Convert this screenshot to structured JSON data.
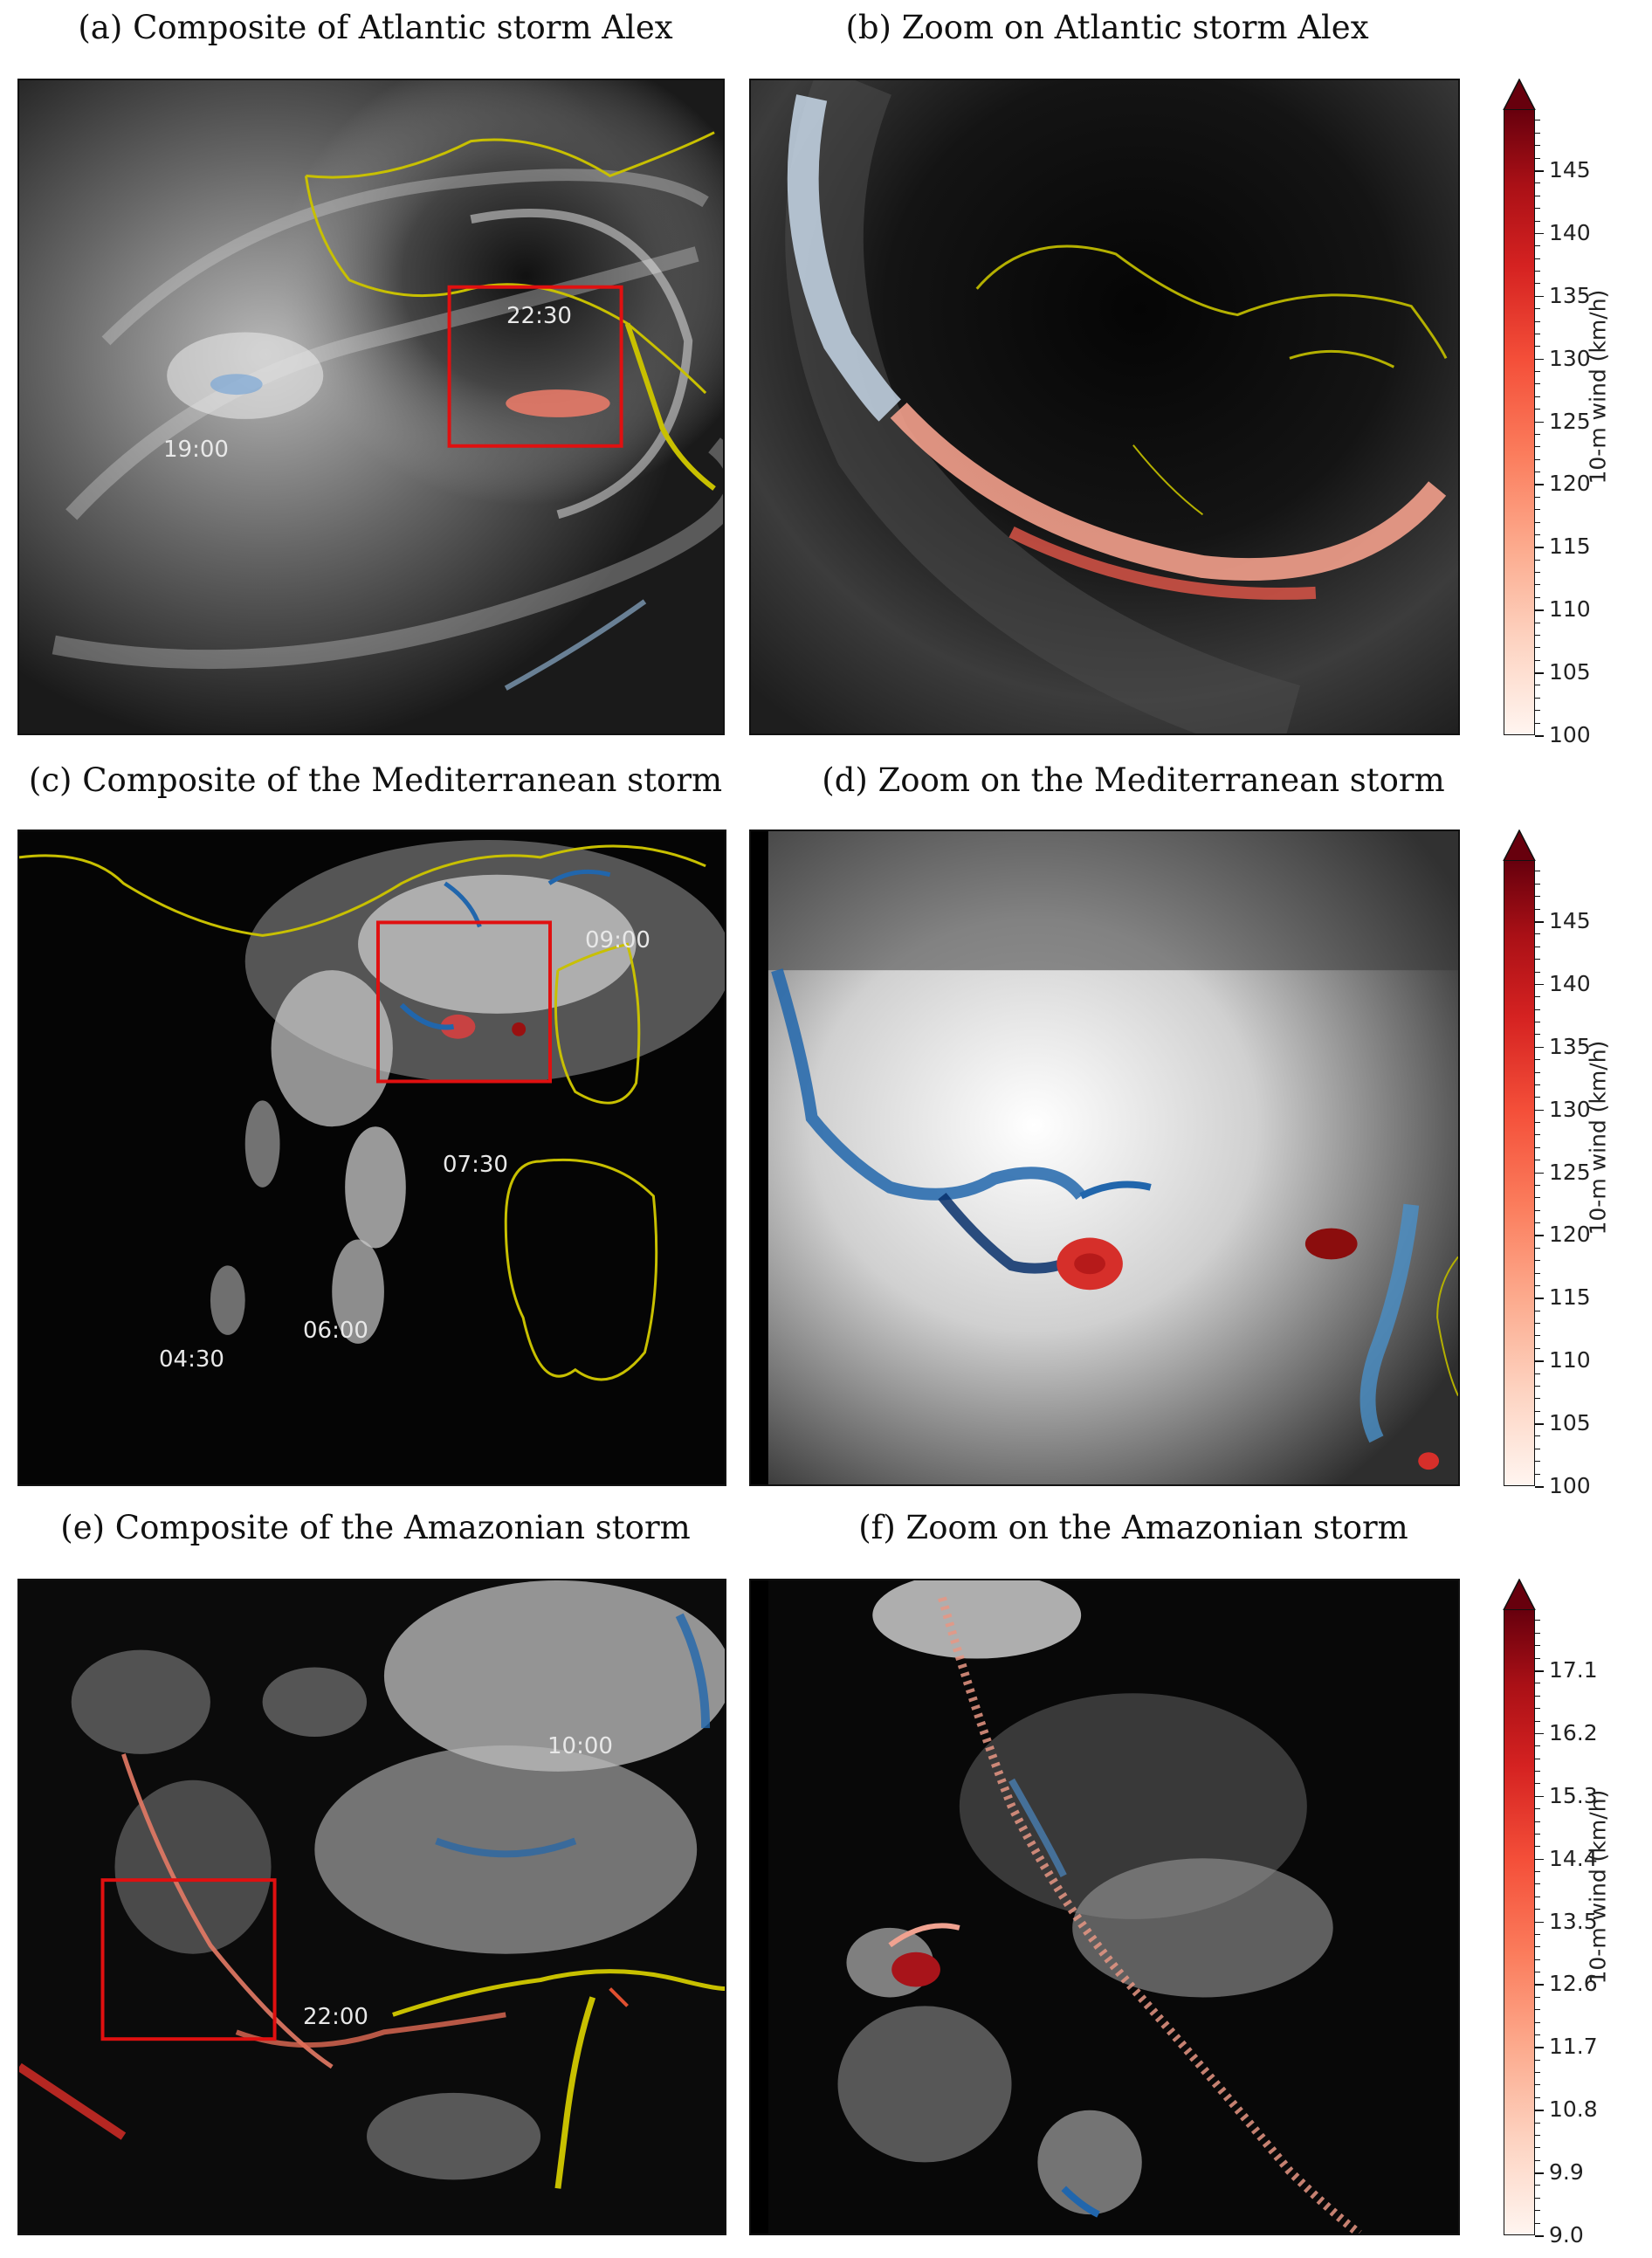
{
  "panels": [
    {
      "caption": "(a) Composite of Atlantic storm Alex",
      "labels": [
        "22:30",
        "19:00"
      ]
    },
    {
      "caption": "(b) Zoom on Atlantic storm Alex",
      "labels": []
    },
    {
      "caption": "(c) Composite of the Mediterranean storm",
      "labels": [
        "09:00",
        "07:30",
        "06:00",
        "04:30"
      ]
    },
    {
      "caption": "(d) Zoom on the Mediterranean storm",
      "labels": []
    },
    {
      "caption": "(e) Composite of the Amazonian storm",
      "labels": [
        "10:00",
        "22:00"
      ]
    },
    {
      "caption": "(f) Zoom on the Amazonian storm",
      "labels": []
    }
  ],
  "colorbars": [
    {
      "label": "10-m wind (km/h)",
      "ticks": [
        "145",
        "140",
        "135",
        "130",
        "125",
        "120",
        "115",
        "110",
        "105",
        "100"
      ]
    },
    {
      "label": "10-m wind (km/h)",
      "ticks": [
        "145",
        "140",
        "135",
        "130",
        "125",
        "120",
        "115",
        "110",
        "105",
        "100"
      ]
    },
    {
      "label": "10-m wind (km/h)",
      "ticks": [
        "17.1",
        "16.2",
        "15.3",
        "14.4",
        "13.5",
        "12.6",
        "11.7",
        "10.8",
        "9.9",
        "9.0"
      ]
    }
  ],
  "colors": {
    "highlight_box": "#e01010",
    "coastline": "#c8c000",
    "wind_low": "#fff5f0",
    "wind_high": "#67000d",
    "updraft_blue": "#2166ac"
  }
}
